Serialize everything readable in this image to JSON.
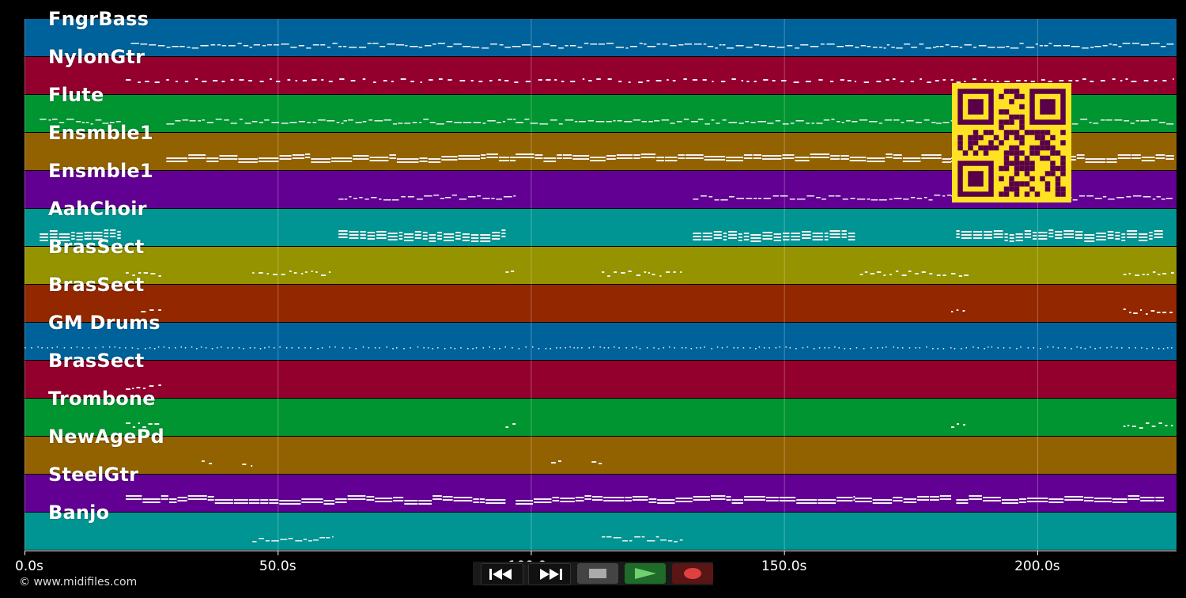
{
  "app": {
    "copyright": "© www.midifiles.com"
  },
  "chart_data": {
    "type": "piano-roll",
    "x_unit": "s",
    "xlim": [
      0,
      227.5
    ],
    "tick_labels": [
      "0.0s",
      "50.0s",
      "100.0s",
      "150.0s",
      "200.0s"
    ],
    "tick_values": [
      0,
      50,
      100,
      150,
      200
    ],
    "tracks": [
      {
        "name": "FngrBass",
        "color": "#00629b",
        "segments": [
          [
            21,
            62
          ],
          [
            62,
            97
          ],
          [
            97,
            133
          ],
          [
            133,
            180
          ],
          [
            180,
            227
          ]
        ],
        "style": "line"
      },
      {
        "name": "NylonGtr",
        "color": "#93002e",
        "segments": [
          [
            20,
            227
          ]
        ],
        "style": "dots"
      },
      {
        "name": "Flute",
        "color": "#009531",
        "segments": [
          [
            3,
            19
          ],
          [
            28,
            63
          ],
          [
            63,
            97
          ],
          [
            97,
            133
          ],
          [
            133,
            180
          ],
          [
            180,
            227
          ]
        ],
        "style": "line"
      },
      {
        "name": "Ensmble1",
        "color": "#936200",
        "segments": [
          [
            28,
            97
          ],
          [
            97,
            183
          ],
          [
            183,
            227
          ]
        ],
        "style": "bars"
      },
      {
        "name": "Ensmble1",
        "color": "#620093",
        "segments": [
          [
            62,
            97
          ],
          [
            132,
            183
          ],
          [
            183,
            227
          ]
        ],
        "style": "line"
      },
      {
        "name": "AahChoir",
        "color": "#009593",
        "segments": [
          [
            3,
            19
          ],
          [
            62,
            95
          ],
          [
            132,
            164
          ],
          [
            184,
            225
          ]
        ],
        "style": "blocks"
      },
      {
        "name": "BrasSect",
        "color": "#959300",
        "segments": [
          [
            20,
            27
          ],
          [
            45,
            61
          ],
          [
            95,
            97
          ],
          [
            114,
            130
          ],
          [
            165,
            182
          ],
          [
            183,
            187
          ],
          [
            217,
            227
          ]
        ],
        "style": "sparse"
      },
      {
        "name": "BrasSect",
        "color": "#932700",
        "segments": [
          [
            23,
            27
          ],
          [
            183,
            186
          ],
          [
            217,
            227
          ]
        ],
        "style": "sparse"
      },
      {
        "name": "GM Drums",
        "color": "#00629b",
        "segments": [
          [
            0,
            227
          ]
        ],
        "style": "dotted"
      },
      {
        "name": "BrasSect",
        "color": "#93002e",
        "segments": [
          [
            20,
            27
          ]
        ],
        "style": "sparse"
      },
      {
        "name": "Trombone",
        "color": "#009531",
        "segments": [
          [
            20,
            27
          ],
          [
            95,
            97
          ],
          [
            183,
            186
          ],
          [
            217,
            227
          ]
        ],
        "style": "sparse"
      },
      {
        "name": "NewAgePd",
        "color": "#936200",
        "segments": [
          [
            35,
            37
          ],
          [
            43,
            45
          ],
          [
            104,
            106
          ],
          [
            112,
            114
          ]
        ],
        "style": "sparse"
      },
      {
        "name": "SteelGtr",
        "color": "#620093",
        "segments": [
          [
            20,
            95
          ],
          [
            97,
            164
          ],
          [
            164,
            183
          ],
          [
            184,
            225
          ]
        ],
        "style": "bars"
      },
      {
        "name": "Banjo",
        "color": "#009593",
        "segments": [
          [
            45,
            61
          ],
          [
            114,
            130
          ]
        ],
        "style": "line"
      }
    ]
  },
  "transport": {
    "rewind_icon": "rewind-icon",
    "forward_icon": "fast-forward-icon",
    "stop_icon": "stop-icon",
    "play_icon": "play-icon",
    "record_icon": "record-icon"
  },
  "overlay": {
    "qr_icon": "qr-code-icon",
    "qr_fg": "#580048",
    "qr_bg": "#ffe223"
  }
}
